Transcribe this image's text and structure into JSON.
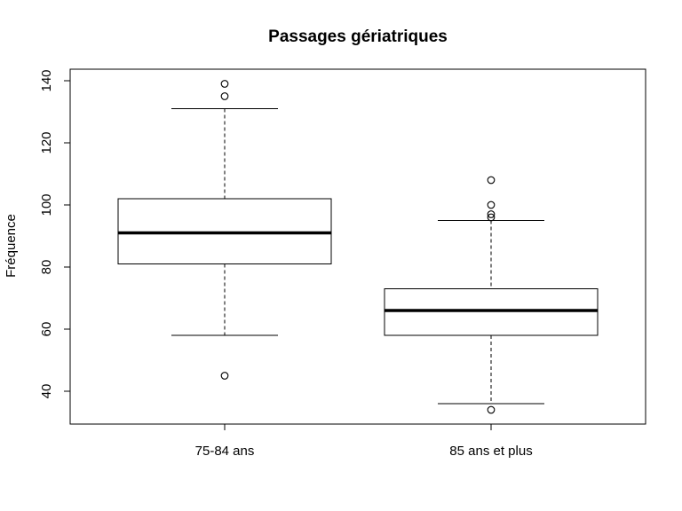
{
  "chart_data": {
    "type": "boxplot",
    "title": "Passages gériatriques",
    "xlabel": "",
    "ylabel": "Fréquence",
    "ylim": [
      30,
      142
    ],
    "yticks": [
      40,
      60,
      80,
      100,
      120,
      140
    ],
    "categories": [
      "75-84 ans",
      "85 ans et plus"
    ],
    "boxes": [
      {
        "category": "75-84 ans",
        "whisker_low": 58,
        "q1": 81,
        "median": 91,
        "q3": 102,
        "whisker_high": 131,
        "outliers": [
          45,
          135,
          139
        ]
      },
      {
        "category": "85 ans et plus",
        "whisker_low": 36,
        "q1": 58,
        "median": 66,
        "q3": 73,
        "whisker_high": 95,
        "outliers": [
          34,
          96,
          97,
          100,
          108
        ]
      }
    ],
    "grid": false,
    "legend": "none"
  }
}
